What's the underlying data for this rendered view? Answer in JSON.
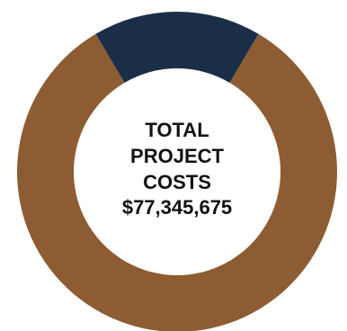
{
  "chart_data": {
    "type": "pie",
    "donut": true,
    "center_label": {
      "lines": [
        "TOTAL",
        "PROJECT",
        "COSTS",
        "$77,345,675"
      ]
    },
    "total": 77345675,
    "slices": [
      {
        "value": 0.17,
        "color": "#1b2e48"
      },
      {
        "value": 0.83,
        "color": "#8e5c33"
      }
    ]
  }
}
